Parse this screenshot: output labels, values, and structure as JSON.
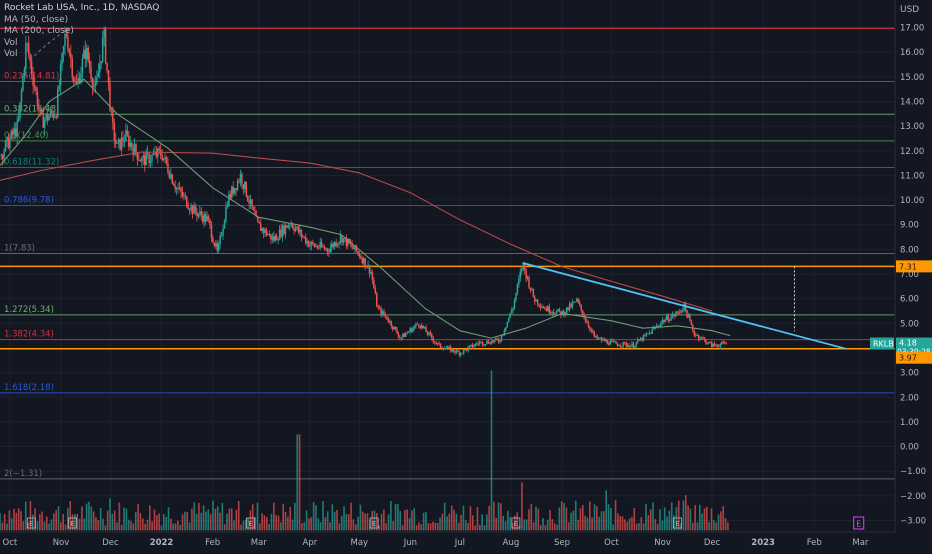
{
  "chart_data": {
    "type": "candlestick",
    "title": "Rocket Lab USA, Inc., 1D, NASDAQ",
    "currency": "USD",
    "indicators": [
      "MA (50, close)",
      "MA (200, close)",
      "Vol",
      "Vol"
    ],
    "x_ticks": [
      "Oct",
      "Nov",
      "Dec",
      "2022",
      "Feb",
      "Mar",
      "Apr",
      "May",
      "Jun",
      "Jul",
      "Aug",
      "Sep",
      "Oct",
      "Nov",
      "Dec",
      "2023",
      "Feb",
      "Mar"
    ],
    "y_ticks": [
      "17.00",
      "16.00",
      "15.00",
      "14.00",
      "13.00",
      "12.00",
      "11.00",
      "10.00",
      "9.00",
      "8.00",
      "7.00",
      "6.00",
      "5.00",
      "4.00",
      "3.00",
      "2.00",
      "1.00",
      "0.00",
      "−1.00",
      "−2.00",
      "−3.00"
    ],
    "ylim": [
      -3.4,
      17.4
    ],
    "fib_levels": [
      {
        "label": "0.236(14.81)",
        "value": 14.81,
        "color": "#f23645"
      },
      {
        "label": "0.382(13.48)",
        "value": 13.48,
        "color": "#81c784"
      },
      {
        "label": "0.5(12.40)",
        "value": 12.4,
        "color": "#4caf50"
      },
      {
        "label": "0.618(11.32)",
        "value": 11.32,
        "color": "#089981"
      },
      {
        "label": "0.786(9.78)",
        "value": 9.78,
        "color": "#2962ff"
      },
      {
        "label": "1(7.83)",
        "value": 7.83,
        "color": "#787b86"
      },
      {
        "label": "1.272(5.34)",
        "value": 5.34,
        "color": "#81c784"
      },
      {
        "label": "1.382(4.34)",
        "value": 4.34,
        "color": "#f23645"
      },
      {
        "label": "1.618(2.18)",
        "value": 2.18,
        "color": "#2962ff"
      },
      {
        "label": "2(−1.31)",
        "value": -1.31,
        "color": "#787b86"
      }
    ],
    "horizontal_lines": [
      {
        "value": 16.97,
        "color": "#f23645"
      },
      {
        "value": 7.31,
        "color": "#ff9800"
      },
      {
        "value": 3.97,
        "color": "#ff9800"
      }
    ],
    "trendline": {
      "from": [
        "2022-08-08",
        7.45
      ],
      "to": [
        "2023-02-20",
        3.97
      ]
    },
    "price_tags": [
      {
        "value": 7.31,
        "text": "7.31",
        "color": "#ff9800"
      },
      {
        "value": 4.18,
        "text": "RKLB",
        "color": "#26a69a"
      },
      {
        "value": 4.18,
        "text": "4.18",
        "color": "#26a69a"
      },
      {
        "value": 4.18,
        "text": "03:39:28",
        "color": "#26a69a"
      },
      {
        "value": 3.97,
        "text": "3.97",
        "color": "#ff9800"
      }
    ],
    "earnings_markers": [
      "E",
      "E",
      "E",
      "E",
      "E",
      "E"
    ],
    "future_earnings_marker": "E",
    "price_path": [
      [
        "2021-09-25",
        11.8
      ],
      [
        "2021-10-06",
        13.0
      ],
      [
        "2021-10-11",
        16.4
      ],
      [
        "2021-10-20",
        13.2
      ],
      [
        "2021-10-29",
        13.6
      ],
      [
        "2021-11-04",
        16.9
      ],
      [
        "2021-11-10",
        14.5
      ],
      [
        "2021-11-16",
        16.1
      ],
      [
        "2021-11-22",
        14.4
      ],
      [
        "2021-11-27",
        16.7
      ],
      [
        "2021-12-02",
        13.0
      ],
      [
        "2021-12-05",
        12.1
      ],
      [
        "2021-12-10",
        12.6
      ],
      [
        "2021-12-20",
        11.6
      ],
      [
        "2022-01-01",
        11.9
      ],
      [
        "2022-01-10",
        10.5
      ],
      [
        "2022-01-20",
        9.6
      ],
      [
        "2022-01-29",
        9.2
      ],
      [
        "2022-02-04",
        7.8
      ],
      [
        "2022-02-10",
        10.0
      ],
      [
        "2022-02-18",
        11.0
      ],
      [
        "2022-02-28",
        9.0
      ],
      [
        "2022-03-10",
        8.4
      ],
      [
        "2022-03-20",
        9.1
      ],
      [
        "2022-04-01",
        8.2
      ],
      [
        "2022-04-12",
        8.0
      ],
      [
        "2022-04-20",
        8.5
      ],
      [
        "2022-05-01",
        7.8
      ],
      [
        "2022-05-08",
        7.1
      ],
      [
        "2022-05-12",
        5.6
      ],
      [
        "2022-05-18",
        5.2
      ],
      [
        "2022-05-26",
        4.4
      ],
      [
        "2022-06-06",
        5.0
      ],
      [
        "2022-06-18",
        4.1
      ],
      [
        "2022-07-01",
        3.8
      ],
      [
        "2022-07-12",
        4.2
      ],
      [
        "2022-07-25",
        4.3
      ],
      [
        "2022-08-02",
        5.6
      ],
      [
        "2022-08-08",
        7.4
      ],
      [
        "2022-08-15",
        6.0
      ],
      [
        "2022-08-22",
        5.6
      ],
      [
        "2022-09-01",
        5.4
      ],
      [
        "2022-09-10",
        5.9
      ],
      [
        "2022-09-15",
        5.2
      ],
      [
        "2022-09-21",
        4.4
      ],
      [
        "2022-10-01",
        4.2
      ],
      [
        "2022-10-14",
        4.1
      ],
      [
        "2022-10-24",
        4.6
      ],
      [
        "2022-11-01",
        5.1
      ],
      [
        "2022-11-10",
        5.4
      ],
      [
        "2022-11-14",
        5.7
      ],
      [
        "2022-11-20",
        4.6
      ],
      [
        "2022-12-01",
        4.1
      ],
      [
        "2022-12-10",
        4.18
      ]
    ],
    "ma50_path": [
      [
        "2021-09-25",
        11.4
      ],
      [
        "2021-10-10",
        12.6
      ],
      [
        "2021-10-25",
        14.0
      ],
      [
        "2021-11-15",
        14.9
      ],
      [
        "2021-12-05",
        13.5
      ],
      [
        "2022-01-05",
        12.1
      ],
      [
        "2022-02-01",
        10.5
      ],
      [
        "2022-03-01",
        9.3
      ],
      [
        "2022-04-01",
        8.9
      ],
      [
        "2022-04-20",
        8.6
      ],
      [
        "2022-05-15",
        7.2
      ],
      [
        "2022-06-10",
        5.6
      ],
      [
        "2022-07-01",
        4.7
      ],
      [
        "2022-07-20",
        4.4
      ],
      [
        "2022-08-10",
        4.8
      ],
      [
        "2022-09-01",
        5.4
      ],
      [
        "2022-10-01",
        5.1
      ],
      [
        "2022-10-20",
        4.8
      ],
      [
        "2022-11-10",
        4.9
      ],
      [
        "2022-12-01",
        4.7
      ],
      [
        "2022-12-12",
        4.5
      ]
    ],
    "ma200_path": [
      [
        "2021-09-25",
        10.8
      ],
      [
        "2021-10-20",
        11.2
      ],
      [
        "2021-11-20",
        11.6
      ],
      [
        "2021-12-20",
        11.95
      ],
      [
        "2022-02-01",
        11.9
      ],
      [
        "2022-03-01",
        11.7
      ],
      [
        "2022-04-01",
        11.5
      ],
      [
        "2022-05-01",
        11.1
      ],
      [
        "2022-06-01",
        10.3
      ],
      [
        "2022-07-01",
        9.2
      ],
      [
        "2022-08-01",
        8.2
      ],
      [
        "2022-09-01",
        7.3
      ],
      [
        "2022-10-01",
        6.7
      ],
      [
        "2022-11-01",
        6.1
      ],
      [
        "2022-12-01",
        5.5
      ]
    ],
    "volume_spikes": [
      [
        "2021-12-01",
        2.0
      ],
      [
        "2022-02-15",
        1.3
      ],
      [
        "2022-03-25",
        6.0
      ],
      [
        "2022-07-20",
        10.0
      ],
      [
        "2022-08-08",
        3.0
      ],
      [
        "2022-09-28",
        2.5
      ],
      [
        "2022-11-15",
        2.2
      ]
    ],
    "measure_line": {
      "date": "2023-01-20",
      "from": 7.31,
      "to": 4.68
    }
  }
}
